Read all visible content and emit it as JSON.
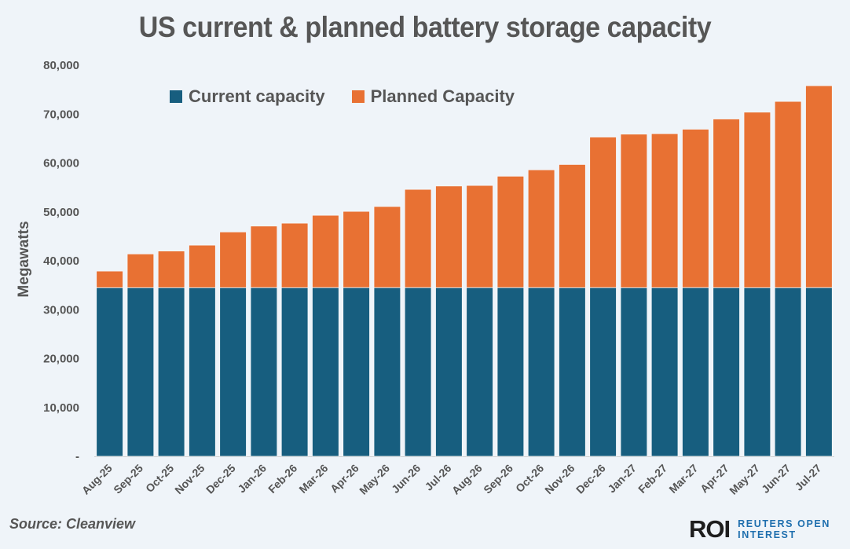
{
  "chart_data": {
    "type": "bar",
    "stacked": true,
    "title": "US current & planned battery storage capacity",
    "xlabel": "",
    "ylabel": "Megawatts",
    "ylim": [
      0,
      80000
    ],
    "yticks": [
      0,
      10000,
      20000,
      30000,
      40000,
      50000,
      60000,
      70000,
      80000
    ],
    "ytick_labels": [
      "-",
      "10,000",
      "20,000",
      "30,000",
      "40,000",
      "50,000",
      "60,000",
      "70,000",
      "80,000"
    ],
    "grid": false,
    "legend_position": "top-left",
    "categories": [
      "Aug-25",
      "Sep-25",
      "Oct-25",
      "Nov-25",
      "Dec-25",
      "Jan-26",
      "Feb-26",
      "Mar-26",
      "Apr-26",
      "May-26",
      "Jun-26",
      "Jul-26",
      "Aug-26",
      "Sep-26",
      "Oct-26",
      "Nov-26",
      "Dec-26",
      "Jan-27",
      "Feb-27",
      "Mar-27",
      "Apr-27",
      "May-27",
      "Jun-27",
      "Jul-27"
    ],
    "series": [
      {
        "name": "Current capacity",
        "color": "#175e7f",
        "values": [
          34500,
          34500,
          34500,
          34500,
          34500,
          34500,
          34500,
          34500,
          34500,
          34500,
          34500,
          34500,
          34500,
          34500,
          34500,
          34500,
          34500,
          34500,
          34500,
          34500,
          34500,
          34500,
          34500,
          34500
        ]
      },
      {
        "name": "Planned Capacity",
        "color": "#e87133",
        "values": [
          3400,
          6900,
          7500,
          8700,
          11400,
          12600,
          13200,
          14800,
          15600,
          16600,
          20100,
          20800,
          20900,
          22800,
          24100,
          25200,
          30800,
          31400,
          31500,
          32400,
          34500,
          35900,
          38100,
          41300
        ]
      }
    ],
    "totals": [
      37900,
      41400,
      42000,
      43200,
      45900,
      47100,
      47700,
      49300,
      50100,
      51100,
      54600,
      55300,
      55400,
      57300,
      58600,
      59700,
      65300,
      65900,
      66000,
      66900,
      69000,
      70400,
      72600,
      75800
    ]
  },
  "footer": {
    "source": "Source: Cleanview",
    "logo_mark": "ROI",
    "logo_line1": "REUTERS OPEN",
    "logo_line2": "INTEREST"
  },
  "colors": {
    "background": "#eff4f9",
    "current": "#175e7f",
    "planned": "#e87133",
    "text": "#565656",
    "brand_blue": "#1f6fae"
  }
}
